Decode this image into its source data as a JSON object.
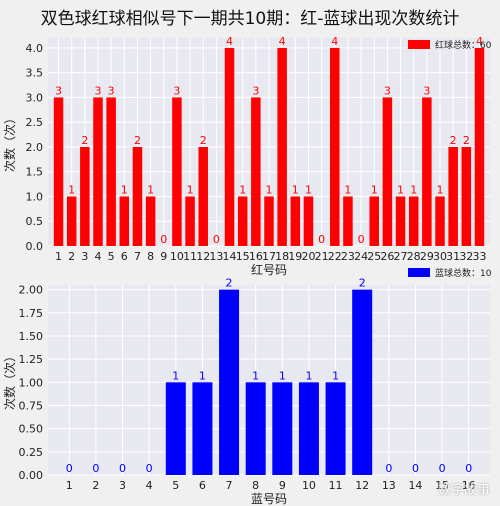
{
  "title": "双色球红球相似号下一期共10期：红-蓝球出现次数统计",
  "watermark": "数字故事",
  "chart_data": [
    {
      "type": "bar",
      "xlabel": "红号码",
      "ylabel": "次数（次）",
      "ylim": [
        0,
        4.2
      ],
      "yticks": [
        "0.0",
        "0.5",
        "1.0",
        "1.5",
        "2.0",
        "2.5",
        "3.0",
        "3.5",
        "4.0"
      ],
      "ytick_values": [
        0,
        0.5,
        1,
        1.5,
        2,
        2.5,
        3,
        3.5,
        4
      ],
      "categories": [
        "1",
        "2",
        "3",
        "4",
        "5",
        "6",
        "7",
        "8",
        "9",
        "10",
        "11",
        "12",
        "13",
        "14",
        "15",
        "16",
        "17",
        "18",
        "19",
        "20",
        "21",
        "22",
        "23",
        "24",
        "25",
        "26",
        "27",
        "28",
        "29",
        "30",
        "31",
        "32",
        "33"
      ],
      "values": [
        3,
        1,
        2,
        3,
        3,
        1,
        2,
        1,
        0,
        3,
        1,
        2,
        0,
        4,
        1,
        3,
        1,
        4,
        1,
        1,
        0,
        4,
        1,
        0,
        1,
        3,
        1,
        1,
        3,
        1,
        2,
        2,
        4
      ],
      "series": [
        {
          "name": "红球总数：60",
          "color": "#ff0000",
          "label_color": "#ff0000"
        }
      ],
      "grid": true,
      "legend_position": "top-right"
    },
    {
      "type": "bar",
      "xlabel": "蓝号码",
      "ylabel": "次数（次）",
      "ylim": [
        0,
        2.05
      ],
      "yticks": [
        "0.00",
        "0.25",
        "0.50",
        "0.75",
        "1.00",
        "1.25",
        "1.50",
        "1.75",
        "2.00"
      ],
      "ytick_values": [
        0,
        0.25,
        0.5,
        0.75,
        1,
        1.25,
        1.5,
        1.75,
        2
      ],
      "categories": [
        "1",
        "2",
        "3",
        "4",
        "5",
        "6",
        "7",
        "8",
        "9",
        "10",
        "11",
        "12",
        "13",
        "14",
        "15",
        "16"
      ],
      "values": [
        0,
        0,
        0,
        0,
        1,
        1,
        2,
        1,
        1,
        1,
        1,
        2,
        0,
        0,
        0,
        0
      ],
      "series": [
        {
          "name": "蓝球总数：10",
          "color": "#0000ff",
          "label_color": "#0000ff"
        }
      ],
      "grid": true,
      "legend_position": "top-right"
    }
  ]
}
